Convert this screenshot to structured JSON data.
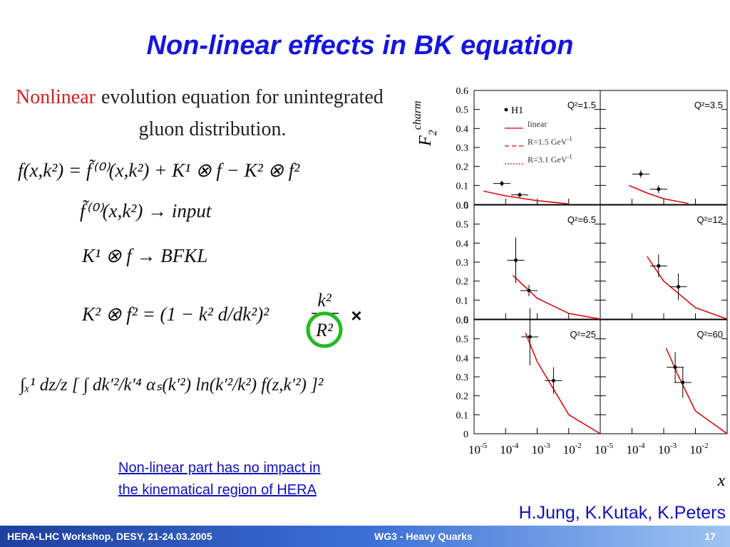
{
  "title": "Non-linear effects in BK equation",
  "left": {
    "heading_highlight": "Nonlinear",
    "heading_rest": "evolution equation for unintegrated",
    "heading_line2": "gluon distribution.",
    "eq1": "f(x,k²) = f̃⁽⁰⁾(x,k²) + K¹ ⊗ f − K² ⊗ f²",
    "eq2": "f̃⁽⁰⁾(x,k²) → input",
    "eq3": "K¹ ⊗ f → BFKL",
    "eq4": {
      "lhs": "K² ⊗ f² = (1 − k² d/dk²)²",
      "num": "k²",
      "den": "R²"
    },
    "eq5": "∫ₓ¹ dz/z [ ∫ dk′²/k′⁴ αₛ(k′²) ln(k′²/k²) f(z,k′²) ]²",
    "cross": "×"
  },
  "note": [
    "Non-linear part has no impact in",
    "the kinematical region of HERA"
  ],
  "authors": "H.Jung, K.Kutak, K.Peters",
  "footer": {
    "event": "HERA-LHC Workshop, DESY, 21-24.03.2005",
    "track": "WG3 - Heavy Quarks",
    "page": "17"
  },
  "figure": {
    "y_label": {
      "main": "F",
      "sub": "2",
      "sup": "charm"
    },
    "x_label": "x",
    "log_x": true,
    "xlim": [
      1e-05,
      0.1
    ],
    "xticks": [
      {
        "value": 1e-05,
        "label": "10",
        "exponent": "-5"
      },
      {
        "value": 0.0001,
        "label": "10",
        "exponent": "-4"
      },
      {
        "value": 0.001,
        "label": "10",
        "exponent": "-3"
      },
      {
        "value": 0.01,
        "label": "10",
        "exponent": "-2"
      }
    ],
    "ylim": [
      0,
      0.6
    ],
    "yticks": [
      0,
      0.1,
      0.2,
      0.3,
      0.4,
      0.5,
      0.6
    ],
    "legend": {
      "data": "H1",
      "series": [
        {
          "name": "linear",
          "color": "#e00000",
          "style": "solid"
        },
        {
          "name": "R=1.5 GeV",
          "exponent": "-1",
          "color": "#e00000",
          "style": "dashed"
        },
        {
          "name": "R=3.1 GeV",
          "exponent": "-1",
          "color": "#e00000",
          "style": "dotted"
        }
      ]
    },
    "panels": [
      {
        "label": "Q²=1.5",
        "points": [
          {
            "x": 7.6e-05,
            "y": 0.11,
            "yerr": 0.015
          },
          {
            "x": 0.00028,
            "y": 0.05,
            "yerr": 0.012
          }
        ],
        "curve": {
          "x": [
            2e-05,
            0.0001,
            0.001,
            0.01
          ],
          "y": [
            0.07,
            0.045,
            0.02,
            0.003
          ]
        }
      },
      {
        "label": "Q²=3.5",
        "points": [
          {
            "x": 0.00019,
            "y": 0.16,
            "yerr": 0.02
          },
          {
            "x": 0.00069,
            "y": 0.08,
            "yerr": 0.02
          }
        ],
        "curve": {
          "x": [
            8e-05,
            0.0003,
            0.001,
            0.006
          ],
          "y": [
            0.1,
            0.06,
            0.03,
            0.005
          ]
        }
      },
      {
        "label": "Q²=6.5",
        "points": [
          {
            "x": 0.00021,
            "y": 0.31,
            "yerr": 0.12
          },
          {
            "x": 0.00055,
            "y": 0.15,
            "yerr": 0.03
          }
        ],
        "curve": {
          "x": [
            0.00017,
            0.001,
            0.01,
            0.1
          ],
          "y": [
            0.23,
            0.11,
            0.03,
            0
          ]
        }
      },
      {
        "label": "Q²=12",
        "points": [
          {
            "x": 0.00069,
            "y": 0.28,
            "yerr": 0.06
          },
          {
            "x": 0.0029,
            "y": 0.17,
            "yerr": 0.07
          }
        ],
        "curve": {
          "x": [
            0.0003,
            0.001,
            0.01,
            0.1
          ],
          "y": [
            0.33,
            0.2,
            0.06,
            0
          ]
        }
      },
      {
        "label": "Q²=25",
        "points": [
          {
            "x": 0.00059,
            "y": 0.51,
            "yerr": 0.15
          },
          {
            "x": 0.0033,
            "y": 0.28,
            "yerr": 0.07
          }
        ],
        "curve": {
          "x": [
            0.00043,
            0.001,
            0.01,
            0.1
          ],
          "y": [
            0.53,
            0.38,
            0.1,
            0
          ]
        }
      },
      {
        "label": "Q²=60",
        "points": [
          {
            "x": 0.0023,
            "y": 0.35,
            "yerr": 0.08
          },
          {
            "x": 0.004,
            "y": 0.27,
            "yerr": 0.08
          }
        ],
        "curve": {
          "x": [
            0.0012,
            0.003,
            0.01,
            0.1
          ],
          "y": [
            0.45,
            0.3,
            0.12,
            0
          ]
        }
      }
    ]
  }
}
